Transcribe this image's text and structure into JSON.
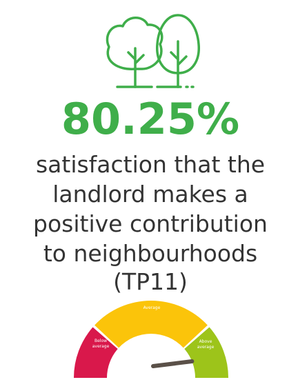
{
  "stat": "80.25%",
  "description": [
    "satisfaction that the",
    "landlord makes a",
    "positive contribution",
    "to neighbourhoods",
    "(TP11)"
  ],
  "gauge": {
    "below": [
      "Below",
      "average"
    ],
    "average": "Average",
    "above": [
      "Above",
      "average"
    ]
  }
}
